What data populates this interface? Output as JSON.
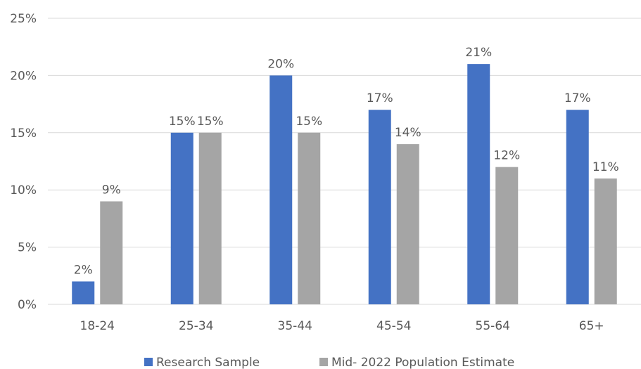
{
  "chart_data": {
    "type": "bar",
    "title": "",
    "xlabel": "",
    "ylabel": "",
    "categories": [
      "18-24",
      "25-34",
      "35-44",
      "45-54",
      "55-64",
      "65+"
    ],
    "series": [
      {
        "name": "Research Sample",
        "color": "#4472C4",
        "values": [
          2,
          15,
          20,
          17,
          21,
          17
        ],
        "labels": [
          "2%",
          "15%",
          "20%",
          "17%",
          "21%",
          "17%"
        ]
      },
      {
        "name": "Mid- 2022 Population Estimate",
        "color": "#A5A5A5",
        "values": [
          9,
          15,
          15,
          14,
          12,
          11
        ],
        "labels": [
          "9%",
          "15%",
          "15%",
          "14%",
          "12%",
          "11%"
        ]
      }
    ],
    "ylim": [
      0,
      25
    ],
    "yticks": [
      0,
      5,
      10,
      15,
      20,
      25
    ],
    "ytick_labels": [
      "0%",
      "5%",
      "10%",
      "15%",
      "20%",
      "25%"
    ],
    "grid": true,
    "legend_position": "bottom",
    "gridline_color": "#D9D9D9",
    "text_color": "#595959"
  }
}
